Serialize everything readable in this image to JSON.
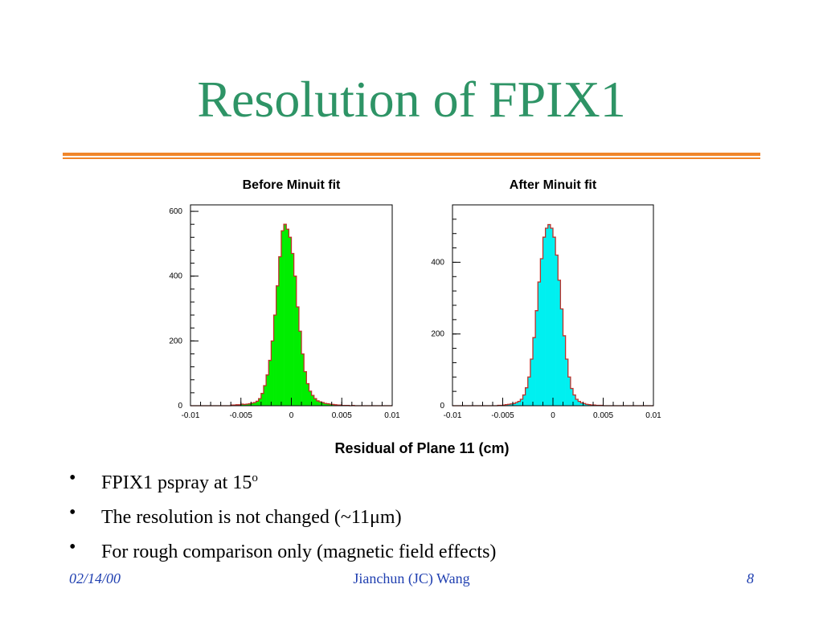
{
  "slide": {
    "title": "Resolution of FPIX1",
    "bullets": [
      {
        "text": "FPIX1 pspray at 15",
        "sup": "o",
        "after": ""
      },
      {
        "text": "The resolution is not changed (~11",
        "sup": "",
        "after": "μm)"
      },
      {
        "text": "For rough comparison only (magnetic field effects)",
        "sup": "",
        "after": ""
      }
    ],
    "bullet_glyph": "•",
    "footer": {
      "date": "02/14/00",
      "author": "Jianchun (JC) Wang",
      "page": "8"
    }
  },
  "colors": {
    "title": "#2e9466",
    "rule": "#f0862a",
    "footer": "#1f3fb0",
    "outline": "#c0302a"
  },
  "shared_xlabel": "Residual of Plane 11 (cm)",
  "chart_data": [
    {
      "type": "histogram",
      "title": "Before Minuit fit",
      "fill": "#00ee00",
      "xlim": [
        -0.01,
        0.01
      ],
      "ylim": [
        0,
        620
      ],
      "xticks": [
        "-0.01",
        "-0.005",
        "0",
        "0.005",
        "0.01"
      ],
      "xtick_values": [
        -0.01,
        -0.005,
        0,
        0.005,
        0.01
      ],
      "yticks": [
        "0",
        "200",
        "400",
        "600"
      ],
      "ytick_values": [
        0,
        200,
        400,
        600
      ],
      "bin_start": -0.01,
      "bin_width": 0.00025,
      "values": [
        0,
        0,
        0,
        0,
        0,
        0,
        0,
        0,
        0,
        0,
        0,
        0,
        0,
        0,
        0,
        0,
        2,
        2,
        3,
        3,
        5,
        4,
        5,
        6,
        8,
        10,
        14,
        22,
        38,
        62,
        95,
        140,
        200,
        280,
        370,
        460,
        540,
        560,
        545,
        520,
        470,
        400,
        305,
        230,
        160,
        105,
        68,
        45,
        32,
        22,
        15,
        12,
        10,
        7,
        6,
        5,
        4,
        3,
        2,
        2,
        1,
        1,
        1,
        0,
        1,
        0,
        0,
        0,
        0,
        0,
        0,
        0,
        0,
        0,
        0,
        0,
        0,
        0,
        0,
        0
      ]
    },
    {
      "type": "histogram",
      "title": "After Minuit fit",
      "fill": "#00f0f0",
      "xlim": [
        -0.01,
        0.01
      ],
      "ylim": [
        0,
        560
      ],
      "xticks": [
        "-0.01",
        "-0.005",
        "0",
        "0.005",
        "0.01"
      ],
      "xtick_values": [
        -0.01,
        -0.005,
        0,
        0.005,
        0.01
      ],
      "yticks": [
        "0",
        "200",
        "400"
      ],
      "ytick_values": [
        0,
        200,
        400
      ],
      "bin_start": -0.01,
      "bin_width": 0.00025,
      "values": [
        0,
        0,
        0,
        0,
        0,
        0,
        0,
        0,
        0,
        0,
        0,
        0,
        0,
        0,
        0,
        0,
        0,
        0,
        1,
        1,
        2,
        3,
        4,
        5,
        6,
        9,
        12,
        18,
        30,
        50,
        80,
        130,
        190,
        265,
        345,
        410,
        470,
        495,
        505,
        495,
        470,
        420,
        350,
        270,
        195,
        130,
        80,
        48,
        30,
        18,
        12,
        8,
        6,
        4,
        3,
        2,
        2,
        1,
        1,
        1,
        0,
        0,
        0,
        0,
        0,
        0,
        0,
        0,
        0,
        0,
        0,
        0,
        0,
        0,
        0,
        0,
        0,
        0,
        0,
        0
      ]
    }
  ]
}
